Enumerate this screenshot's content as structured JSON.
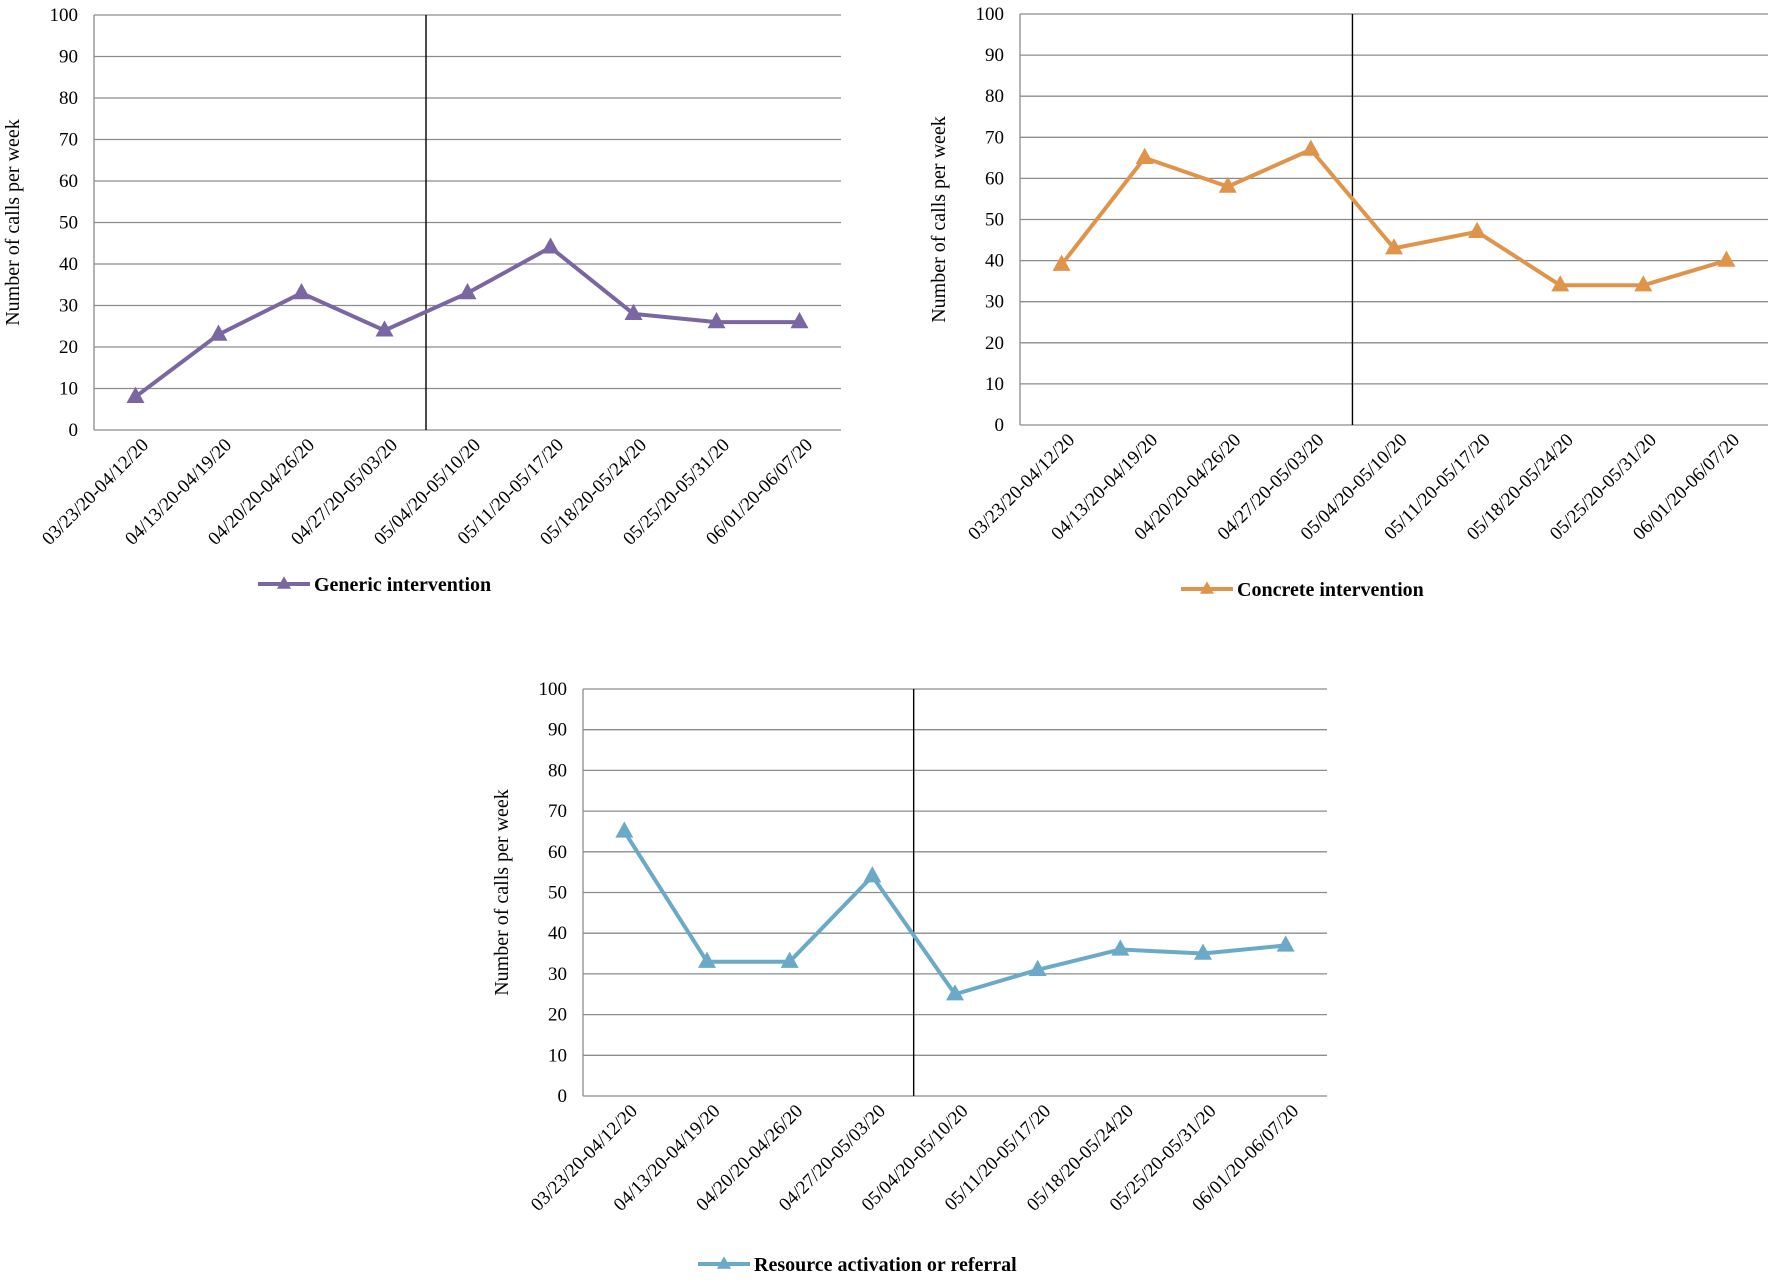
{
  "chart_data": [
    {
      "type": "line",
      "categories": [
        "03/23/20-04/12/20",
        "04/13/20-04/19/20",
        "04/20/20-04/26/20",
        "04/27/20-05/03/20",
        "05/04/20-05/10/20",
        "05/11/20-05/17/20",
        "05/18/20-05/24/20",
        "05/25/20-05/31/20",
        "06/01/20-06/07/20"
      ],
      "series": [
        {
          "name": "Generic intervention",
          "values": [
            8,
            23,
            33,
            24,
            33,
            44,
            28,
            26,
            26
          ],
          "color": "#7a66a3"
        }
      ],
      "ylabel": "Number of calls per week",
      "ylim": [
        0,
        100
      ],
      "yticks": [
        0,
        10,
        20,
        30,
        40,
        50,
        60,
        70,
        80,
        90,
        100
      ],
      "grid": true,
      "vertical_marker_category": "04/27/20-05/03/20",
      "legend": "bottom",
      "marker": "triangle"
    },
    {
      "type": "line",
      "categories": [
        "03/23/20-04/12/20",
        "04/13/20-04/19/20",
        "04/20/20-04/26/20",
        "04/27/20-05/03/20",
        "05/04/20-05/10/20",
        "05/11/20-05/17/20",
        "05/18/20-05/24/20",
        "05/25/20-05/31/20",
        "06/01/20-06/07/20"
      ],
      "series": [
        {
          "name": "Concrete intervention",
          "values": [
            39,
            65,
            58,
            67,
            43,
            47,
            34,
            34,
            40
          ],
          "color": "#e0944a"
        }
      ],
      "ylabel": "Number of calls per week",
      "ylim": [
        0,
        100
      ],
      "yticks": [
        0,
        10,
        20,
        30,
        40,
        50,
        60,
        70,
        80,
        90,
        100
      ],
      "grid": true,
      "vertical_marker_category": "04/27/20-05/03/20",
      "legend": "bottom",
      "marker": "triangle"
    },
    {
      "type": "line",
      "categories": [
        "03/23/20-04/12/20",
        "04/13/20-04/19/20",
        "04/20/20-04/26/20",
        "04/27/20-05/03/20",
        "05/04/20-05/10/20",
        "05/11/20-05/17/20",
        "05/18/20-05/24/20",
        "05/25/20-05/31/20",
        "06/01/20-06/07/20"
      ],
      "series": [
        {
          "name": "Resource activation or referral",
          "values": [
            65,
            33,
            33,
            54,
            25,
            31,
            36,
            35,
            37
          ],
          "color": "#6aaac8"
        }
      ],
      "ylabel": "Number of calls per week",
      "ylim": [
        0,
        100
      ],
      "yticks": [
        0,
        10,
        20,
        30,
        40,
        50,
        60,
        70,
        80,
        90,
        100
      ],
      "grid": true,
      "vertical_marker_category": "04/27/20-05/03/20",
      "legend": "bottom",
      "marker": "triangle"
    }
  ]
}
